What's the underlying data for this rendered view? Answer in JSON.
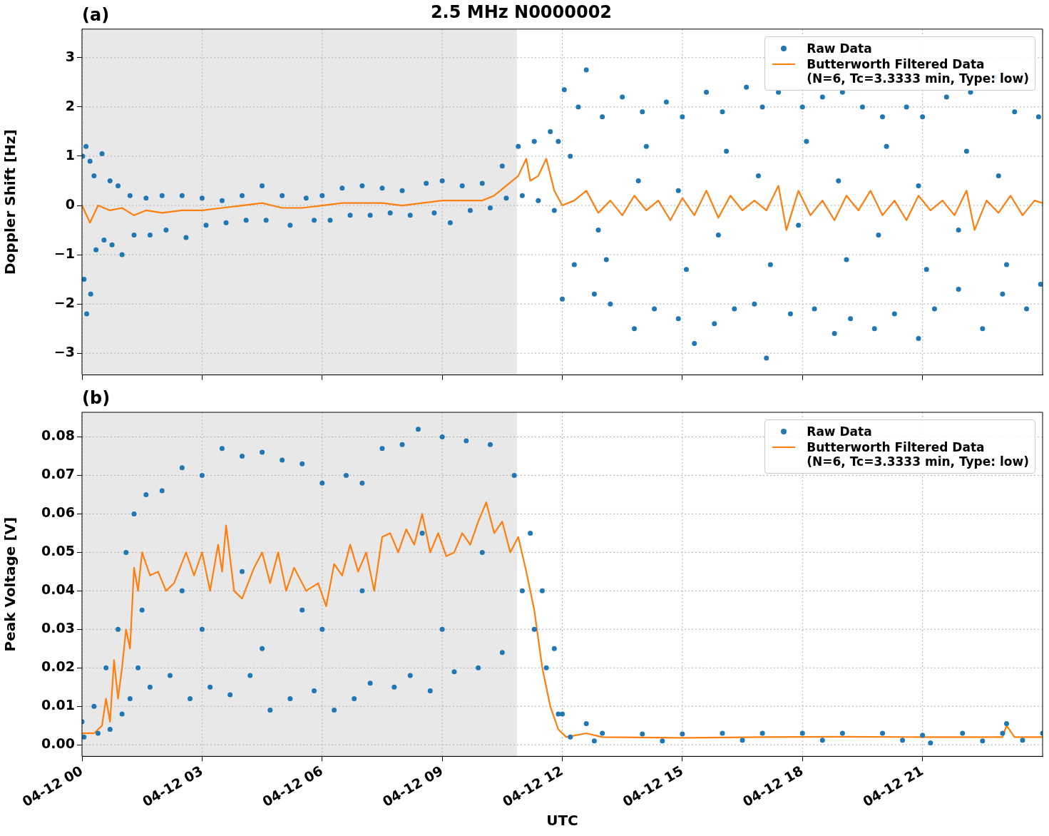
{
  "chart_data": [
    {
      "type": "scatter",
      "title": "2.5 MHz N0000002",
      "annotations": [
        "(a)"
      ],
      "ylabel": "Doppler Shift [Hz]",
      "xlim": [
        "--04-12T00:00",
        "--04-13T00:00"
      ],
      "ylim": [
        -3.44,
        3.58
      ],
      "xticks": [
        {
          "value": "--04-12T00:00",
          "label": null
        },
        {
          "value": "--04-12T03:00",
          "label": null
        },
        {
          "value": "--04-12T06:00",
          "label": null
        },
        {
          "value": "--04-12T09:00",
          "label": null
        },
        {
          "value": "--04-12T12:00",
          "label": null
        },
        {
          "value": "--04-12T15:00",
          "label": null
        },
        {
          "value": "--04-12T18:00",
          "label": null
        },
        {
          "value": "--04-12T21:00",
          "label": null
        }
      ],
      "yticks": [
        {
          "value": -3,
          "label": "−3"
        },
        {
          "value": -2,
          "label": "−2"
        },
        {
          "value": -1,
          "label": "−1"
        },
        0,
        1,
        2,
        3
      ],
      "tick_labels": "y",
      "grid": true,
      "legend": "top right",
      "bands": [
        {
          "axis": "x",
          "from": "--04-12T00:00",
          "to": "--04-12T10:52",
          "color": "#e8e8e8"
        }
      ],
      "series": [
        {
          "name": "Raw Data",
          "type": "scatter",
          "marker": "circle",
          "color": "#1f77b4",
          "x": [
            "--04-12T00:01",
            "--04-12T00:03",
            "--04-12T00:06",
            "--04-12T00:07",
            "--04-12T00:12",
            "--04-12T00:13",
            "--04-12T00:18",
            "--04-12T00:21",
            "--04-12T00:30",
            "--04-12T00:33",
            "--04-12T00:42",
            "--04-12T00:45",
            "--04-12T00:54",
            "--04-12T01:00",
            "--04-12T01:12",
            "--04-12T01:18",
            "--04-12T01:36",
            "--04-12T01:42",
            "--04-12T02:00",
            "--04-12T02:06",
            "--04-12T02:30",
            "--04-12T02:36",
            "--04-12T03:00",
            "--04-12T03:06",
            "--04-12T03:30",
            "--04-12T03:36",
            "--04-12T04:00",
            "--04-12T04:06",
            "--04-12T04:30",
            "--04-12T04:36",
            "--04-12T05:00",
            "--04-12T05:12",
            "--04-12T05:36",
            "--04-12T05:48",
            "--04-12T06:00",
            "--04-12T06:12",
            "--04-12T06:30",
            "--04-12T06:42",
            "--04-12T07:00",
            "--04-12T07:12",
            "--04-12T07:30",
            "--04-12T07:42",
            "--04-12T08:00",
            "--04-12T08:12",
            "--04-12T08:36",
            "--04-12T08:48",
            "--04-12T09:00",
            "--04-12T09:12",
            "--04-12T09:30",
            "--04-12T09:42",
            "--04-12T10:00",
            "--04-12T10:12",
            "--04-12T10:30",
            "--04-12T10:36",
            "--04-12T10:54",
            "--04-12T11:00",
            "--04-12T11:18",
            "--04-12T11:24",
            "--04-12T11:42",
            "--04-12T11:48",
            "--04-12T11:54",
            "--04-12T12:00",
            "--04-12T12:03",
            "--04-12T12:18",
            "--04-12T12:24",
            "--04-12T12:36",
            "--04-12T12:48",
            "--04-12T13:00",
            "--04-12T13:12",
            "--04-12T13:30",
            "--04-12T13:48",
            "--04-12T14:00",
            "--04-12T14:18",
            "--04-12T14:36",
            "--04-12T14:54",
            "--04-12T15:00",
            "--04-12T15:18",
            "--04-12T15:36",
            "--04-12T15:48",
            "--04-12T16:00",
            "--04-12T16:18",
            "--04-12T16:36",
            "--04-12T16:48",
            "--04-12T17:00",
            "--04-12T17:06",
            "--04-12T17:24",
            "--04-12T17:42",
            "--04-12T18:00",
            "--04-12T18:18",
            "--04-12T18:30",
            "--04-12T18:48",
            "--04-12T19:00",
            "--04-12T19:12",
            "--04-12T19:30",
            "--04-12T19:48",
            "--04-12T20:00",
            "--04-12T20:18",
            "--04-12T20:36",
            "--04-12T20:54",
            "--04-12T21:00",
            "--04-12T21:18",
            "--04-12T21:36",
            "--04-12T21:54",
            "--04-12T22:12",
            "--04-12T22:30",
            "--04-12T22:48",
            "--04-12T23:00",
            "--04-12T23:18",
            "--04-12T23:36",
            "--04-12T23:54",
            "--04-12T23:57",
            "--04-12T12:12",
            "--04-12T13:06",
            "--04-12T14:06",
            "--04-12T15:06",
            "--04-12T16:06",
            "--04-12T17:12",
            "--04-12T18:06",
            "--04-12T19:06",
            "--04-12T20:06",
            "--04-12T21:06",
            "--04-12T22:06",
            "--04-12T23:06",
            "--04-12T12:54",
            "--04-12T13:54",
            "--04-12T14:54",
            "--04-12T15:54",
            "--04-12T16:54",
            "--04-12T17:54",
            "--04-12T18:54",
            "--04-12T19:54",
            "--04-12T20:54",
            "--04-12T21:54",
            "--04-12T22:54"
          ],
          "values": [
            1.0,
            -1.5,
            1.2,
            -2.2,
            0.9,
            -1.8,
            0.6,
            -0.9,
            1.05,
            -0.7,
            0.5,
            -0.8,
            0.4,
            -1.0,
            0.2,
            -0.6,
            0.15,
            -0.6,
            0.2,
            -0.5,
            0.2,
            -0.65,
            0.15,
            -0.4,
            0.1,
            -0.35,
            0.2,
            -0.3,
            0.4,
            -0.3,
            0.2,
            -0.4,
            0.15,
            -0.3,
            0.2,
            -0.3,
            0.35,
            -0.2,
            0.4,
            -0.2,
            0.35,
            -0.15,
            0.3,
            -0.2,
            0.45,
            -0.15,
            0.5,
            -0.35,
            0.4,
            -0.1,
            0.45,
            -0.05,
            0.8,
            0.15,
            1.2,
            0.2,
            1.3,
            0.1,
            1.5,
            -0.1,
            1.3,
            -1.9,
            2.35,
            -1.2,
            2.0,
            2.75,
            -1.8,
            1.8,
            -2.0,
            2.2,
            -2.5,
            1.9,
            -2.1,
            2.1,
            -2.3,
            1.8,
            -2.8,
            2.3,
            -2.4,
            1.9,
            -2.1,
            2.4,
            -2.0,
            2.0,
            -3.1,
            2.3,
            -2.2,
            2.0,
            -2.1,
            2.2,
            -2.6,
            2.3,
            -2.3,
            2.0,
            -2.5,
            1.8,
            -2.2,
            2.0,
            -2.7,
            1.8,
            -2.1,
            2.2,
            -1.7,
            2.3,
            -2.5,
            2.6,
            -1.8,
            1.9,
            -2.1,
            1.8,
            -1.6,
            1.0,
            -1.1,
            1.2,
            -1.3,
            1.1,
            -1.2,
            1.3,
            -1.1,
            1.2,
            -1.3,
            1.1,
            -1.2,
            -0.5,
            0.5,
            0.3,
            -0.6,
            0.6,
            -0.4,
            0.5,
            -0.6,
            0.4,
            -0.5,
            0.6
          ]
        },
        {
          "name": "Butterworth Filtered Data\n(N=6, Tc=3.3333 min, Type: low)",
          "type": "line",
          "color": "#ff7f0e",
          "x": [
            "--04-12T00:00",
            "--04-12T00:12",
            "--04-12T00:24",
            "--04-12T00:42",
            "--04-12T01:00",
            "--04-12T01:18",
            "--04-12T01:36",
            "--04-12T02:00",
            "--04-12T02:30",
            "--04-12T03:00",
            "--04-12T03:30",
            "--04-12T04:00",
            "--04-12T04:30",
            "--04-12T05:00",
            "--04-12T05:30",
            "--04-12T06:00",
            "--04-12T06:30",
            "--04-12T07:00",
            "--04-12T07:30",
            "--04-12T08:00",
            "--04-12T08:30",
            "--04-12T09:00",
            "--04-12T09:30",
            "--04-12T10:00",
            "--04-12T10:18",
            "--04-12T10:36",
            "--04-12T10:54",
            "--04-12T11:06",
            "--04-12T11:12",
            "--04-12T11:24",
            "--04-12T11:36",
            "--04-12T11:48",
            "--04-12T12:00",
            "--04-12T12:18",
            "--04-12T12:36",
            "--04-12T12:54",
            "--04-12T13:12",
            "--04-12T13:30",
            "--04-12T13:48",
            "--04-12T14:06",
            "--04-12T14:24",
            "--04-12T14:42",
            "--04-12T15:00",
            "--04-12T15:18",
            "--04-12T15:36",
            "--04-12T15:54",
            "--04-12T16:12",
            "--04-12T16:30",
            "--04-12T16:48",
            "--04-12T17:06",
            "--04-12T17:24",
            "--04-12T17:36",
            "--04-12T17:54",
            "--04-12T18:12",
            "--04-12T18:30",
            "--04-12T18:48",
            "--04-12T19:06",
            "--04-12T19:24",
            "--04-12T19:42",
            "--04-12T20:00",
            "--04-12T20:18",
            "--04-12T20:36",
            "--04-12T20:54",
            "--04-12T21:12",
            "--04-12T21:30",
            "--04-12T21:48",
            "--04-12T22:06",
            "--04-12T22:18",
            "--04-12T22:36",
            "--04-12T22:54",
            "--04-12T23:12",
            "--04-12T23:30",
            "--04-12T23:48",
            "--04-13T00:00"
          ],
          "values": [
            0.0,
            -0.35,
            0.0,
            -0.1,
            -0.05,
            -0.2,
            -0.1,
            -0.15,
            -0.1,
            -0.1,
            -0.05,
            0.0,
            0.05,
            -0.05,
            -0.05,
            0.0,
            0.05,
            0.05,
            0.05,
            0.0,
            0.05,
            0.1,
            0.1,
            0.1,
            0.2,
            0.4,
            0.6,
            0.95,
            0.5,
            0.6,
            0.95,
            0.3,
            0.0,
            0.1,
            0.3,
            -0.15,
            0.1,
            -0.2,
            0.2,
            -0.1,
            0.1,
            -0.3,
            0.15,
            -0.2,
            0.3,
            -0.25,
            0.2,
            -0.1,
            0.1,
            -0.1,
            0.4,
            -0.5,
            0.3,
            -0.2,
            0.1,
            -0.3,
            0.2,
            -0.1,
            0.3,
            -0.2,
            0.1,
            -0.3,
            0.2,
            -0.1,
            0.1,
            -0.2,
            0.3,
            -0.5,
            0.1,
            -0.15,
            0.2,
            -0.2,
            0.1,
            0.05
          ]
        }
      ]
    },
    {
      "type": "scatter",
      "annotations": [
        "(b)"
      ],
      "xlabel": "UTC",
      "ylabel": "Peak Voltage [V]",
      "xlim": [
        "--04-12T00:00",
        "--04-13T00:00"
      ],
      "ylim": [
        -0.003,
        0.0864
      ],
      "xticks": [
        {
          "value": "--04-12T00:00",
          "label": "04-12 00"
        },
        {
          "value": "--04-12T03:00",
          "label": "04-12 03"
        },
        {
          "value": "--04-12T06:00",
          "label": "04-12 06"
        },
        {
          "value": "--04-12T09:00",
          "label": "04-12 09"
        },
        {
          "value": "--04-12T12:00",
          "label": "04-12 12"
        },
        {
          "value": "--04-12T15:00",
          "label": "04-12 15"
        },
        {
          "value": "--04-12T18:00",
          "label": "04-12 18"
        },
        {
          "value": "--04-12T21:00",
          "label": "04-12 21"
        }
      ],
      "yticks": [
        {
          "value": 0,
          "label": "0.00"
        },
        {
          "value": 0.01,
          "label": "0.01"
        },
        {
          "value": 0.02,
          "label": "0.02"
        },
        {
          "value": 0.03,
          "label": "0.03"
        },
        {
          "value": 0.04,
          "label": "0.04"
        },
        {
          "value": 0.05,
          "label": "0.05"
        },
        {
          "value": 0.06,
          "label": "0.06"
        },
        {
          "value": 0.07,
          "label": "0.07"
        },
        {
          "value": 0.08,
          "label": "0.08"
        }
      ],
      "grid": true,
      "legend": "top right",
      "bands": [
        {
          "axis": "x",
          "from": "--04-12T00:00",
          "to": "--04-12T10:52",
          "color": "#e8e8e8"
        }
      ],
      "series": [
        {
          "name": "Raw Data",
          "type": "scatter",
          "marker": "circle",
          "color": "#1f77b4",
          "x": [
            "--04-12T00:00",
            "--04-12T00:03",
            "--04-12T00:18",
            "--04-12T00:24",
            "--04-12T00:36",
            "--04-12T00:42",
            "--04-12T00:54",
            "--04-12T01:00",
            "--04-12T01:06",
            "--04-12T01:12",
            "--04-12T01:18",
            "--04-12T01:24",
            "--04-12T01:36",
            "--04-12T01:42",
            "--04-12T02:00",
            "--04-12T02:12",
            "--04-12T02:30",
            "--04-12T02:42",
            "--04-12T03:00",
            "--04-12T03:12",
            "--04-12T03:30",
            "--04-12T03:42",
            "--04-12T04:00",
            "--04-12T04:12",
            "--04-12T04:30",
            "--04-12T04:42",
            "--04-12T05:00",
            "--04-12T05:12",
            "--04-12T05:30",
            "--04-12T05:48",
            "--04-12T06:00",
            "--04-12T06:18",
            "--04-12T06:36",
            "--04-12T06:48",
            "--04-12T07:00",
            "--04-12T07:12",
            "--04-12T07:30",
            "--04-12T07:48",
            "--04-12T08:00",
            "--04-12T08:12",
            "--04-12T08:24",
            "--04-12T08:42",
            "--04-12T09:00",
            "--04-12T09:18",
            "--04-12T09:36",
            "--04-12T09:54",
            "--04-12T10:12",
            "--04-12T10:30",
            "--04-12T10:48",
            "--04-12T11:00",
            "--04-12T11:12",
            "--04-12T11:18",
            "--04-12T11:30",
            "--04-12T11:36",
            "--04-12T11:48",
            "--04-12T11:54",
            "--04-12T12:00",
            "--04-12T12:12",
            "--04-12T12:36",
            "--04-12T12:48",
            "--04-12T13:00",
            "--04-12T14:00",
            "--04-12T14:30",
            "--04-12T15:00",
            "--04-12T16:00",
            "--04-12T16:30",
            "--04-12T17:00",
            "--04-12T18:00",
            "--04-12T18:30",
            "--04-12T19:00",
            "--04-12T20:00",
            "--04-12T20:30",
            "--04-12T21:00",
            "--04-12T21:12",
            "--04-12T22:00",
            "--04-12T22:30",
            "--04-12T23:00",
            "--04-12T23:06",
            "--04-12T23:30",
            "--04-13T00:00",
            "--04-12T01:30",
            "--04-12T02:30",
            "--04-12T03:00",
            "--04-12T04:00",
            "--04-12T04:30",
            "--04-12T05:30",
            "--04-12T06:00",
            "--04-12T07:00",
            "--04-12T08:30",
            "--04-12T09:00",
            "--04-12T10:00"
          ],
          "values": [
            0.006,
            0.002,
            0.01,
            0.003,
            0.02,
            0.004,
            0.03,
            0.008,
            0.05,
            0.012,
            0.06,
            0.02,
            0.065,
            0.015,
            0.066,
            0.018,
            0.072,
            0.012,
            0.07,
            0.015,
            0.077,
            0.013,
            0.075,
            0.018,
            0.076,
            0.009,
            0.074,
            0.012,
            0.073,
            0.014,
            0.068,
            0.009,
            0.07,
            0.012,
            0.068,
            0.016,
            0.077,
            0.015,
            0.078,
            0.018,
            0.082,
            0.014,
            0.08,
            0.019,
            0.079,
            0.02,
            0.078,
            0.024,
            0.07,
            0.04,
            0.055,
            0.03,
            0.04,
            0.02,
            0.025,
            0.008,
            0.008,
            0.002,
            0.0055,
            0.001,
            0.003,
            0.0028,
            0.001,
            0.0028,
            0.003,
            0.0012,
            0.003,
            0.003,
            0.0012,
            0.003,
            0.003,
            0.0012,
            0.0025,
            0.0005,
            0.003,
            0.001,
            0.003,
            0.0055,
            0.0012,
            0.003,
            0.035,
            0.04,
            0.03,
            0.045,
            0.025,
            0.035,
            0.03,
            0.04,
            0.055,
            0.03,
            0.05
          ]
        },
        {
          "name": "Butterworth Filtered Data\n(N=6, Tc=3.3333 min, Type: low)",
          "type": "line",
          "color": "#ff7f0e",
          "x": [
            "--04-12T00:00",
            "--04-12T00:18",
            "--04-12T00:30",
            "--04-12T00:36",
            "--04-12T00:42",
            "--04-12T00:48",
            "--04-12T00:54",
            "--04-12T01:00",
            "--04-12T01:06",
            "--04-12T01:12",
            "--04-12T01:18",
            "--04-12T01:24",
            "--04-12T01:30",
            "--04-12T01:42",
            "--04-12T01:54",
            "--04-12T02:06",
            "--04-12T02:18",
            "--04-12T02:36",
            "--04-12T02:48",
            "--04-12T03:00",
            "--04-12T03:12",
            "--04-12T03:24",
            "--04-12T03:30",
            "--04-12T03:36",
            "--04-12T03:48",
            "--04-12T04:00",
            "--04-12T04:18",
            "--04-12T04:30",
            "--04-12T04:42",
            "--04-12T04:54",
            "--04-12T05:06",
            "--04-12T05:18",
            "--04-12T05:36",
            "--04-12T05:54",
            "--04-12T06:06",
            "--04-12T06:18",
            "--04-12T06:30",
            "--04-12T06:42",
            "--04-12T06:54",
            "--04-12T07:06",
            "--04-12T07:18",
            "--04-12T07:30",
            "--04-12T07:42",
            "--04-12T07:54",
            "--04-12T08:06",
            "--04-12T08:18",
            "--04-12T08:30",
            "--04-12T08:42",
            "--04-12T08:54",
            "--04-12T09:06",
            "--04-12T09:18",
            "--04-12T09:30",
            "--04-12T09:42",
            "--04-12T09:54",
            "--04-12T10:06",
            "--04-12T10:18",
            "--04-12T10:30",
            "--04-12T10:42",
            "--04-12T10:54",
            "--04-12T11:06",
            "--04-12T11:18",
            "--04-12T11:30",
            "--04-12T11:42",
            "--04-12T11:54",
            "--04-12T12:06",
            "--04-12T12:36",
            "--04-12T13:00",
            "--04-12T15:00",
            "--04-12T17:00",
            "--04-12T19:00",
            "--04-12T21:00",
            "--04-12T23:00",
            "--04-12T23:06",
            "--04-12T23:18",
            "--04-13T00:00"
          ],
          "values": [
            0.003,
            0.003,
            0.005,
            0.012,
            0.006,
            0.022,
            0.012,
            0.02,
            0.03,
            0.025,
            0.046,
            0.04,
            0.05,
            0.044,
            0.045,
            0.04,
            0.042,
            0.05,
            0.044,
            0.05,
            0.04,
            0.052,
            0.045,
            0.057,
            0.04,
            0.038,
            0.046,
            0.05,
            0.042,
            0.05,
            0.04,
            0.046,
            0.04,
            0.042,
            0.036,
            0.047,
            0.044,
            0.052,
            0.045,
            0.05,
            0.04,
            0.054,
            0.055,
            0.05,
            0.056,
            0.052,
            0.06,
            0.05,
            0.055,
            0.049,
            0.05,
            0.055,
            0.052,
            0.058,
            0.063,
            0.055,
            0.058,
            0.05,
            0.054,
            0.045,
            0.035,
            0.02,
            0.01,
            0.004,
            0.002,
            0.003,
            0.002,
            0.0018,
            0.002,
            0.0021,
            0.002,
            0.002,
            0.005,
            0.002,
            0.002
          ]
        }
      ]
    }
  ]
}
